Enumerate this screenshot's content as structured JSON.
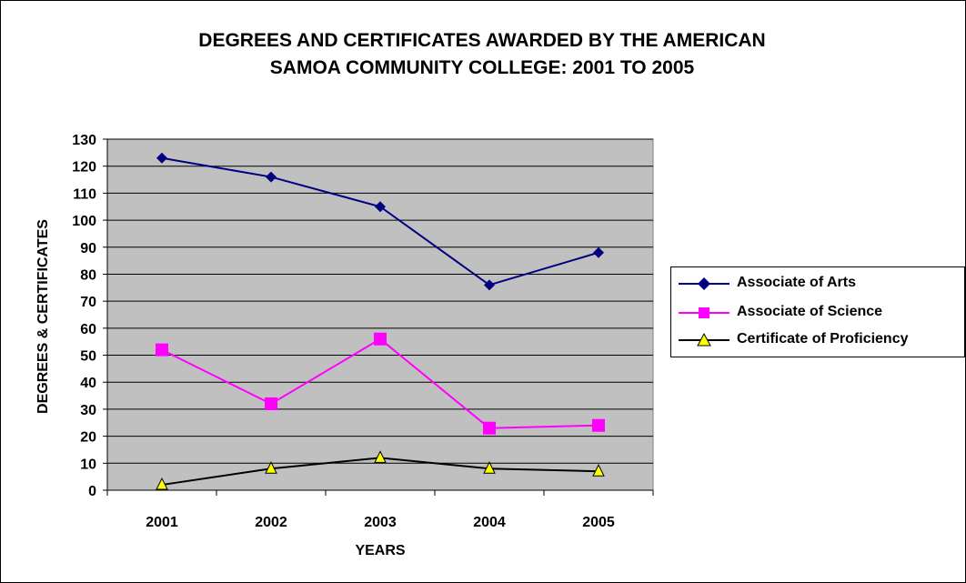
{
  "chart_data": {
    "type": "line",
    "title_line1": "DEGREES AND CERTIFICATES AWARDED BY THE AMERICAN",
    "title_line2": "SAMOA COMMUNITY COLLEGE:  2001 TO 2005",
    "xlabel": "YEARS",
    "ylabel": "DEGREES & CERTIFICATES",
    "categories": [
      "2001",
      "2002",
      "2003",
      "2004",
      "2005"
    ],
    "ylim": [
      0,
      130
    ],
    "yticks": [
      0,
      10,
      20,
      30,
      40,
      50,
      60,
      70,
      80,
      90,
      100,
      110,
      120,
      130
    ],
    "grid": true,
    "plot_background": "#C0C0C0",
    "legend_position": "right",
    "series": [
      {
        "name": "Associate of Arts",
        "values": [
          123,
          116,
          105,
          76,
          88
        ],
        "color": "#000080",
        "marker": "diamond"
      },
      {
        "name": "Associate of Science",
        "values": [
          52,
          32,
          56,
          23,
          24
        ],
        "color": "#FF00FF",
        "marker": "square"
      },
      {
        "name": "Certificate of Proficiency",
        "values": [
          2,
          8,
          12,
          8,
          7
        ],
        "color": "#000000",
        "marker": "triangle",
        "marker_fill": "#FFFF00"
      }
    ]
  }
}
